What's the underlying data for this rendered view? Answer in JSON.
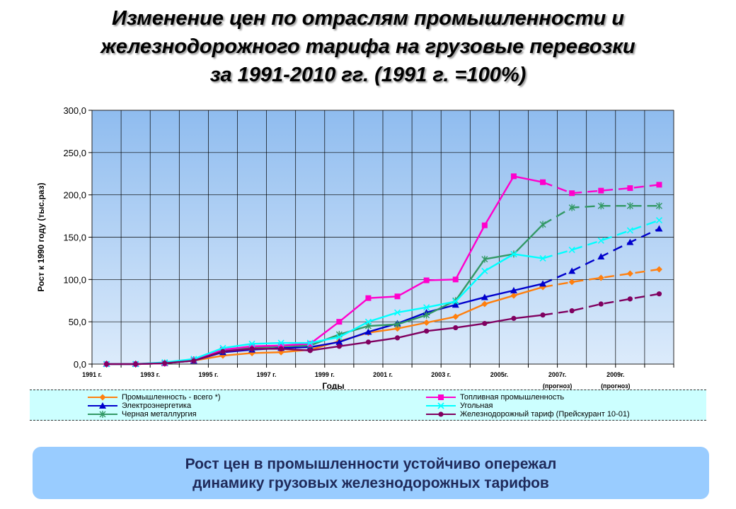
{
  "title": {
    "line1": "Изменение  цен  по отраслям промышленности  и",
    "line2": "железнодорожного  тарифа  на грузовые перевозки",
    "line3": "за 1991-2010 гг. (1991 г. =100%)"
  },
  "chart_data": {
    "type": "line",
    "ylabel": "Рост к 1990 году (тыс.раз)",
    "xlabel": "Годы",
    "ylim": [
      0,
      300
    ],
    "yticks": [
      "0,0",
      "50,0",
      "100,0",
      "150,0",
      "200,0",
      "250,0",
      "300,0"
    ],
    "x_tick_labels": [
      {
        "text": "1991 г.",
        "index": 0
      },
      {
        "text": "1993 г.",
        "index": 2
      },
      {
        "text": "1995 г.",
        "index": 4
      },
      {
        "text": "1997 г.",
        "index": 6
      },
      {
        "text": "1999 г.",
        "index": 8
      },
      {
        "text": "2001 г.",
        "index": 10
      },
      {
        "text": "2003 г.",
        "index": 12
      },
      {
        "text": "2005г.",
        "index": 14
      },
      {
        "text": "2007г.",
        "index": 16,
        "sub": "(прогноз)"
      },
      {
        "text": "2009г.",
        "index": 18,
        "sub": "(прогноз)"
      }
    ],
    "categories": [
      "1991",
      "1992",
      "1993",
      "1994",
      "1995",
      "1996",
      "1997",
      "1998",
      "1999",
      "2000",
      "2001",
      "2002",
      "2003",
      "2004",
      "2005",
      "2006",
      "2007",
      "2008",
      "2009",
      "2010"
    ],
    "forecast_from_index": 16,
    "grid": true,
    "legend_position": "bottom",
    "series": [
      {
        "name": "Промышленность - всего *)",
        "color": "#ff7f0e",
        "marker": "diamond",
        "values": [
          0,
          0,
          1,
          4,
          10,
          13,
          14,
          17,
          27,
          37,
          42,
          49,
          56,
          71,
          81,
          91,
          97,
          102,
          107,
          112
        ]
      },
      {
        "name": "Электроэнергетика",
        "color": "#0000cc",
        "marker": "triangle",
        "values": [
          0,
          0,
          1,
          4,
          14,
          17,
          19,
          20,
          26,
          38,
          48,
          61,
          70,
          79,
          87,
          95,
          110,
          127,
          144,
          160
        ]
      },
      {
        "name": "Черная металлургия",
        "color": "#339966",
        "marker": "star",
        "values": [
          0,
          0,
          1,
          5,
          16,
          19,
          21,
          22,
          35,
          45,
          47,
          58,
          75,
          124,
          130,
          165,
          185,
          187,
          187,
          187
        ]
      },
      {
        "name": "Топливная промышленность",
        "color": "#ff00cc",
        "marker": "square",
        "values": [
          0,
          0,
          1,
          5,
          17,
          21,
          22,
          24,
          50,
          78,
          80,
          99,
          100,
          164,
          222,
          215,
          202,
          205,
          208,
          212
        ]
      },
      {
        "name": "Угольная",
        "color": "#00ffff",
        "marker": "x",
        "values": [
          0,
          0,
          2,
          6,
          19,
          24,
          25,
          25,
          32,
          50,
          61,
          67,
          74,
          110,
          130,
          125,
          135,
          146,
          158,
          170
        ]
      },
      {
        "name": "Железнодорожный тариф (Прейскурант 10-01)",
        "color": "#800060",
        "marker": "circle",
        "values": [
          0,
          0,
          1,
          4,
          15,
          18,
          18,
          16,
          21,
          26,
          31,
          39,
          43,
          48,
          54,
          58,
          63,
          71,
          77,
          83
        ]
      }
    ]
  },
  "summary": {
    "line1": "Рост цен в промышленности устойчиво опережал",
    "line2": "динамику грузовых железнодорожных тарифов"
  }
}
